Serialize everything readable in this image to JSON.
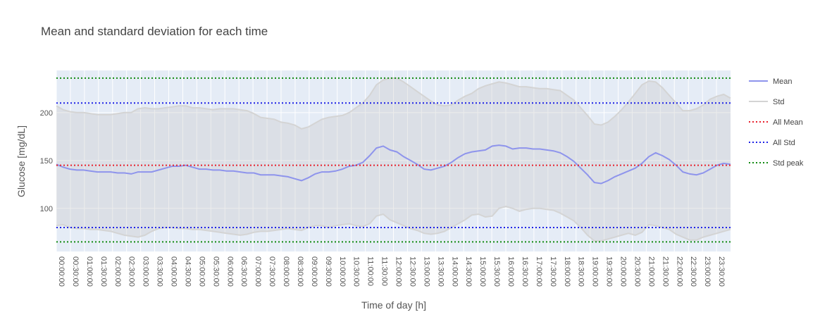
{
  "chart_data": {
    "type": "line",
    "title": "Mean and standard deviation for each time",
    "xlabel": "Time of day [h]",
    "ylabel": "Glucose [mg/dL]",
    "x_tick_labels": [
      "00:00:00",
      "00:30:00",
      "01:00:00",
      "01:30:00",
      "02:00:00",
      "02:30:00",
      "03:00:00",
      "03:30:00",
      "04:00:00",
      "04:30:00",
      "05:00:00",
      "05:30:00",
      "06:00:00",
      "06:30:00",
      "07:00:00",
      "07:30:00",
      "08:00:00",
      "08:30:00",
      "09:00:00",
      "09:30:00",
      "10:00:00",
      "10:30:00",
      "11:00:00",
      "11:30:00",
      "12:00:00",
      "12:30:00",
      "13:00:00",
      "13:30:00",
      "14:00:00",
      "14:30:00",
      "15:00:00",
      "15:30:00",
      "16:00:00",
      "16:30:00",
      "17:00:00",
      "17:30:00",
      "18:00:00",
      "18:30:00",
      "19:00:00",
      "19:30:00",
      "20:00:00",
      "20:30:00",
      "21:00:00",
      "21:30:00",
      "22:00:00",
      "22:30:00",
      "23:00:00",
      "23:30:00"
    ],
    "y_ticks": [
      100,
      150,
      200
    ],
    "ylim": [
      55,
      244
    ],
    "grid": true,
    "legend_position": "right",
    "series": [
      {
        "name": "Mean",
        "color": "#8e94ec",
        "values": [
          146,
          143,
          141,
          140,
          140,
          139,
          138,
          138,
          138,
          137,
          137,
          136,
          138,
          138,
          138,
          140,
          142,
          144,
          144,
          145,
          143,
          141,
          141,
          140,
          140,
          139,
          139,
          138,
          137,
          137,
          135,
          135,
          135,
          134,
          133,
          131,
          129,
          132,
          136,
          138,
          138,
          139,
          141,
          144,
          145,
          148,
          155,
          163,
          165,
          161,
          159,
          154,
          150,
          146,
          141,
          140,
          142,
          144,
          148,
          153,
          157,
          159,
          160,
          161,
          165,
          166,
          165,
          162,
          163,
          163,
          162,
          162,
          161,
          160,
          158,
          154,
          149,
          142,
          135,
          127,
          126,
          129,
          133,
          136,
          139,
          142,
          147,
          154,
          158,
          155,
          151,
          145,
          138,
          136,
          135,
          137,
          141,
          145,
          147,
          146
        ]
      },
      {
        "name": "Std",
        "color": "#d4d4d4",
        "values": [
          [
            82,
            207
          ],
          [
            83,
            203
          ],
          [
            80,
            201
          ],
          [
            79,
            200
          ],
          [
            79,
            200
          ],
          [
            78,
            199
          ],
          [
            78,
            198
          ],
          [
            77,
            198
          ],
          [
            76,
            198
          ],
          [
            74,
            199
          ],
          [
            72,
            200
          ],
          [
            71,
            200
          ],
          [
            70,
            204
          ],
          [
            72,
            205
          ],
          [
            76,
            204
          ],
          [
            79,
            204
          ],
          [
            80,
            205
          ],
          [
            80,
            206
          ],
          [
            79,
            207
          ],
          [
            79,
            207
          ],
          [
            78,
            205
          ],
          [
            78,
            205
          ],
          [
            77,
            204
          ],
          [
            76,
            203
          ],
          [
            75,
            204
          ],
          [
            74,
            204
          ],
          [
            73,
            204
          ],
          [
            72,
            203
          ],
          [
            73,
            202
          ],
          [
            75,
            199
          ],
          [
            76,
            195
          ],
          [
            76,
            194
          ],
          [
            77,
            193
          ],
          [
            78,
            190
          ],
          [
            79,
            189
          ],
          [
            78,
            187
          ],
          [
            77,
            183
          ],
          [
            80,
            185
          ],
          [
            82,
            189
          ],
          [
            82,
            193
          ],
          [
            80,
            195
          ],
          [
            82,
            196
          ],
          [
            83,
            197
          ],
          [
            84,
            200
          ],
          [
            82,
            205
          ],
          [
            81,
            210
          ],
          [
            84,
            218
          ],
          [
            92,
            229
          ],
          [
            94,
            234
          ],
          [
            88,
            236
          ],
          [
            85,
            236
          ],
          [
            82,
            232
          ],
          [
            79,
            227
          ],
          [
            77,
            222
          ],
          [
            74,
            217
          ],
          [
            73,
            212
          ],
          [
            74,
            208
          ],
          [
            76,
            207
          ],
          [
            80,
            208
          ],
          [
            84,
            213
          ],
          [
            88,
            217
          ],
          [
            93,
            220
          ],
          [
            94,
            225
          ],
          [
            91,
            228
          ],
          [
            92,
            230
          ],
          [
            100,
            232
          ],
          [
            102,
            231
          ],
          [
            100,
            229
          ],
          [
            97,
            227
          ],
          [
            99,
            227
          ],
          [
            100,
            226
          ],
          [
            100,
            225
          ],
          [
            99,
            225
          ],
          [
            98,
            224
          ],
          [
            95,
            223
          ],
          [
            91,
            218
          ],
          [
            87,
            213
          ],
          [
            80,
            205
          ],
          [
            72,
            197
          ],
          [
            66,
            188
          ],
          [
            66,
            187
          ],
          [
            68,
            190
          ],
          [
            70,
            196
          ],
          [
            72,
            203
          ],
          [
            74,
            211
          ],
          [
            72,
            220
          ],
          [
            75,
            229
          ],
          [
            83,
            233
          ],
          [
            82,
            232
          ],
          [
            80,
            226
          ],
          [
            78,
            218
          ],
          [
            73,
            210
          ],
          [
            70,
            202
          ],
          [
            67,
            202
          ],
          [
            67,
            204
          ],
          [
            70,
            208
          ],
          [
            72,
            214
          ],
          [
            74,
            217
          ],
          [
            76,
            219
          ],
          [
            78,
            215
          ]
        ]
      },
      {
        "name": "All Mean",
        "color": "#e8222e",
        "style": "dotted",
        "value": 145
      },
      {
        "name": "All Std",
        "color": "#1e22e6",
        "style": "dotted",
        "value_pair": [
          80,
          210
        ]
      },
      {
        "name": "Std peak",
        "color": "#118a11",
        "style": "dotted",
        "value_pair": [
          65,
          236
        ]
      }
    ]
  }
}
